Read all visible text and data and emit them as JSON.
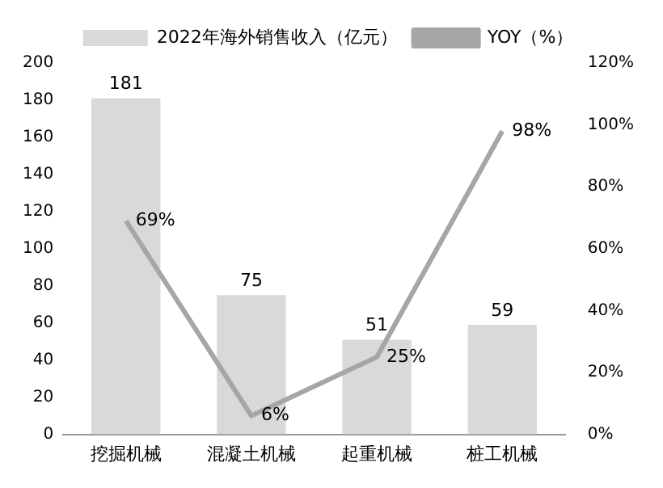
{
  "chart_data": {
    "type": "bar",
    "categories": [
      "挖掘机械",
      "混凝土机械",
      "起重机械",
      "桩工机械"
    ],
    "series": [
      {
        "name": "2022年海外销售收入（亿元）",
        "color": "#d9d9d9",
        "values": [
          181,
          75,
          51,
          59
        ],
        "value_labels": [
          "181",
          "75",
          "51",
          "59"
        ]
      },
      {
        "name": "YOY（%）",
        "type": "line",
        "axis": "y2",
        "color": "#a6a6a6",
        "values": [
          69,
          6,
          25,
          98
        ],
        "value_labels": [
          "69%",
          "6%",
          "25%",
          "98%"
        ]
      }
    ],
    "ylim": [
      0,
      200
    ],
    "yticks": [
      0,
      20,
      40,
      60,
      80,
      100,
      120,
      140,
      160,
      180,
      200
    ],
    "y2lim": [
      0,
      120
    ],
    "y2ticks": [
      {
        "value": 0,
        "label": "0%"
      },
      {
        "value": 20,
        "label": "20%"
      },
      {
        "value": 40,
        "label": "40%"
      },
      {
        "value": 60,
        "label": "60%"
      },
      {
        "value": 80,
        "label": "80%"
      },
      {
        "value": 100,
        "label": "100%"
      },
      {
        "value": 120,
        "label": "120%"
      }
    ],
    "legend": "top",
    "grid": false,
    "marker": "none"
  }
}
